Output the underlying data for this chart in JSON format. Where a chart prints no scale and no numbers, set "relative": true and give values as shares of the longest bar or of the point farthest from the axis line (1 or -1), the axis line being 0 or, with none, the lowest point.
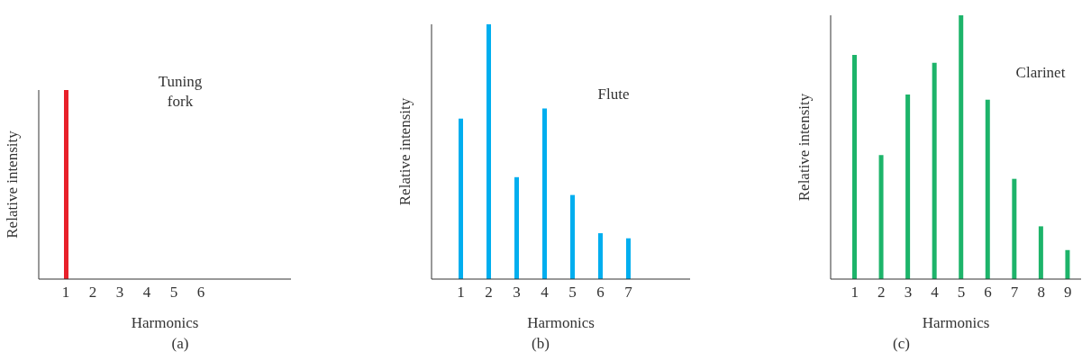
{
  "chart_data": [
    {
      "type": "bar",
      "relative": true,
      "xlabel": "Harmonics",
      "ylabel": "Relative intensity",
      "categories": [
        "1",
        "2",
        "3",
        "4",
        "5",
        "6"
      ],
      "annotations": [
        "(a)"
      ],
      "series": [
        {
          "name": "Tuning fork",
          "color": "#e8202a",
          "values": [
            1,
            0,
            0,
            0,
            0,
            0
          ]
        }
      ]
    },
    {
      "type": "bar",
      "relative": true,
      "xlabel": "Harmonics",
      "ylabel": "Relative intensity",
      "categories": [
        "1",
        "2",
        "3",
        "4",
        "5",
        "6",
        "7"
      ],
      "annotations": [
        "(b)"
      ],
      "series": [
        {
          "name": "Flute",
          "color": "#00aeef",
          "values": [
            0.63,
            1,
            0.4,
            0.67,
            0.33,
            0.18,
            0.16
          ]
        }
      ]
    },
    {
      "type": "bar",
      "relative": true,
      "xlabel": "Harmonics",
      "ylabel": "Relative intensity",
      "categories": [
        "1",
        "2",
        "3",
        "4",
        "5",
        "6",
        "7",
        "8",
        "9"
      ],
      "annotations": [
        "(c)"
      ],
      "series": [
        {
          "name": "Clarinet",
          "color": "#1db46a",
          "values": [
            0.85,
            0.47,
            0.7,
            0.82,
            1,
            0.68,
            0.38,
            0.2,
            0.11
          ]
        }
      ]
    }
  ]
}
